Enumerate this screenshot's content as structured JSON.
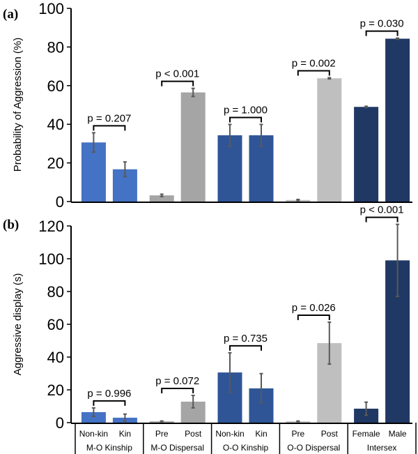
{
  "chart_data": [
    {
      "type": "bar",
      "panel_label": "(a)",
      "ylabel": "Probability of Aggression (%)",
      "ylim": [
        0,
        100
      ],
      "yticks": [
        0,
        20,
        40,
        60,
        80,
        100
      ],
      "groups": [
        {
          "name": "M-O Kinship",
          "color": "#4472C4",
          "categories": [
            "Non-kin",
            "Kin"
          ],
          "values": [
            30.6,
            16.7
          ],
          "errors": [
            5.0,
            3.8
          ],
          "p_label": "p = 0.207"
        },
        {
          "name": "M-O Dispersal",
          "color": "#A5A5A5",
          "categories": [
            "Pre",
            "Post"
          ],
          "values": [
            3.2,
            56.5
          ],
          "errors": [
            0.6,
            2.1
          ],
          "p_label": "p < 0.001"
        },
        {
          "name": "O-O Kinship",
          "color": "#2F5597",
          "categories": [
            "Non-kin",
            "Kin"
          ],
          "values": [
            34.3,
            34.3
          ],
          "errors": [
            5.6,
            5.6
          ],
          "p_label": "p = 1.000"
        },
        {
          "name": "O-O Dispersal",
          "color": "#BFBFBF",
          "categories": [
            "Pre",
            "Post"
          ],
          "values": [
            0.8,
            63.8
          ],
          "errors": [
            0.3,
            0.3
          ],
          "p_label": "p = 0.002"
        },
        {
          "name": "Intersex",
          "color": "#203864",
          "categories": [
            "Female",
            "Male"
          ],
          "values": [
            49.0,
            84.3
          ],
          "errors": [
            0.3,
            0.3
          ],
          "p_label": "p = 0.030"
        }
      ]
    },
    {
      "type": "bar",
      "panel_label": "(b)",
      "ylabel": "Aggressive display (s)",
      "ylim": [
        0,
        120
      ],
      "yticks": [
        0,
        20,
        40,
        60,
        80,
        100,
        120
      ],
      "groups": [
        {
          "name": "M-O Kinship",
          "color": "#4472C4",
          "categories": [
            "Non-kin",
            "Kin"
          ],
          "values": [
            6.4,
            3.0
          ],
          "errors": [
            2.6,
            2.2
          ],
          "p_label": "p = 0.996"
        },
        {
          "name": "M-O Dispersal",
          "color": "#A5A5A5",
          "categories": [
            "Pre",
            "Post"
          ],
          "values": [
            0.8,
            12.8
          ],
          "errors": [
            0.2,
            3.8
          ],
          "p_label": "p = 0.072"
        },
        {
          "name": "O-O Kinship",
          "color": "#2F5597",
          "categories": [
            "Non-kin",
            "Kin"
          ],
          "values": [
            30.6,
            20.9
          ],
          "errors": [
            12.0,
            9.0
          ],
          "p_label": "p = 0.735"
        },
        {
          "name": "O-O Dispersal",
          "color": "#BFBFBF",
          "categories": [
            "Pre",
            "Post"
          ],
          "values": [
            0.8,
            48.5
          ],
          "errors": [
            0.2,
            12.8
          ],
          "p_label": "p = 0.026"
        },
        {
          "name": "Intersex",
          "color": "#203864",
          "categories": [
            "Female",
            "Male"
          ],
          "values": [
            8.5,
            99.0
          ],
          "errors": [
            4.0,
            22.0
          ],
          "p_label": "p < 0.001"
        }
      ]
    }
  ]
}
